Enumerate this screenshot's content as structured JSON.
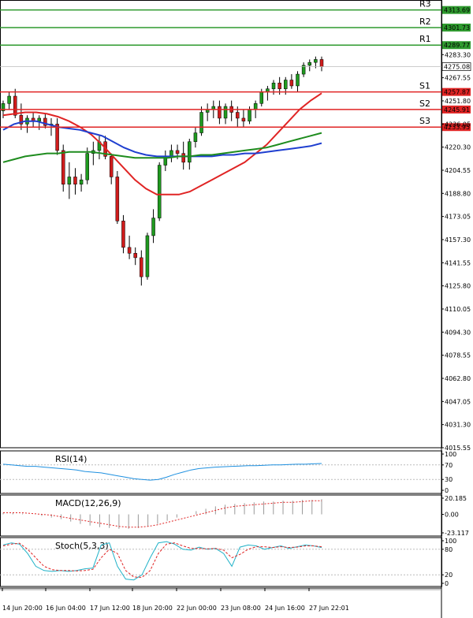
{
  "chart_data": {
    "type": "candlestick",
    "price_axis": {
      "range": [
        4015.55,
        4320.5
      ],
      "ticks": [
        "4283.30",
        "4267.55",
        "4251.80",
        "4236.05",
        "4220.30",
        "4204.55",
        "4188.80",
        "4173.05",
        "4157.30",
        "4141.55",
        "4125.80",
        "4110.05",
        "4094.30",
        "4078.55",
        "4062.80",
        "4047.05",
        "4031.30",
        "4015.55"
      ],
      "current_price": "4275.08"
    },
    "levels": [
      {
        "label": "R3",
        "value": "4313.69",
        "color": "#2e9a2e"
      },
      {
        "label": "R2",
        "value": "4301.73",
        "color": "#2e9a2e"
      },
      {
        "label": "R1",
        "value": "4289.77",
        "color": "#2e9a2e"
      },
      {
        "label": "S1",
        "value": "4257.87",
        "color": "#e02424"
      },
      {
        "label": "S2",
        "value": "4245.91",
        "color": "#e02424"
      },
      {
        "label": "S3",
        "value": "4233.95",
        "color": "#e02424"
      }
    ],
    "x_labels": [
      "14 Jun 20:00",
      "16 Jun 04:00",
      "17 Jun 12:00",
      "18 Jun 20:00",
      "22 Jun 00:00",
      "23 Jun 08:00",
      "24 Jun 16:00",
      "27 Jun 22:01"
    ],
    "candles": [
      [
        4245,
        4252,
        4240,
        4250
      ],
      [
        4250,
        4258,
        4246,
        4255
      ],
      [
        4255,
        4260,
        4240,
        4242
      ],
      [
        4242,
        4250,
        4232,
        4236
      ],
      [
        4236,
        4242,
        4230,
        4240
      ],
      [
        4240,
        4244,
        4234,
        4238
      ],
      [
        4238,
        4242,
        4232,
        4240
      ],
      [
        4240,
        4243,
        4233,
        4235
      ],
      [
        4235,
        4240,
        4228,
        4236
      ],
      [
        4236,
        4240,
        4215,
        4218
      ],
      [
        4218,
        4222,
        4190,
        4195
      ],
      [
        4195,
        4210,
        4185,
        4200
      ],
      [
        4200,
        4206,
        4188,
        4195
      ],
      [
        4195,
        4202,
        4190,
        4198
      ],
      [
        4198,
        4220,
        4195,
        4216
      ],
      [
        4216,
        4224,
        4208,
        4218
      ],
      [
        4218,
        4228,
        4212,
        4224
      ],
      [
        4224,
        4228,
        4212,
        4214
      ],
      [
        4214,
        4216,
        4195,
        4200
      ],
      [
        4200,
        4204,
        4168,
        4170
      ],
      [
        4170,
        4174,
        4148,
        4152
      ],
      [
        4152,
        4160,
        4144,
        4148
      ],
      [
        4148,
        4152,
        4140,
        4145
      ],
      [
        4145,
        4150,
        4126,
        4132
      ],
      [
        4132,
        4162,
        4130,
        4160
      ],
      [
        4160,
        4178,
        4155,
        4172
      ],
      [
        4172,
        4210,
        4170,
        4208
      ],
      [
        4208,
        4218,
        4204,
        4214
      ],
      [
        4214,
        4222,
        4210,
        4218
      ],
      [
        4218,
        4222,
        4212,
        4216
      ],
      [
        4216,
        4224,
        4205,
        4210
      ],
      [
        4210,
        4226,
        4205,
        4224
      ],
      [
        4224,
        4234,
        4220,
        4230
      ],
      [
        4230,
        4248,
        4228,
        4244
      ],
      [
        4244,
        4250,
        4238,
        4246
      ],
      [
        4246,
        4252,
        4240,
        4248
      ],
      [
        4248,
        4252,
        4236,
        4240
      ],
      [
        4240,
        4250,
        4236,
        4248
      ],
      [
        4248,
        4252,
        4238,
        4244
      ],
      [
        4244,
        4248,
        4234,
        4240
      ],
      [
        4240,
        4246,
        4234,
        4238
      ],
      [
        4238,
        4248,
        4236,
        4246
      ],
      [
        4246,
        4252,
        4240,
        4250
      ],
      [
        4250,
        4260,
        4248,
        4258
      ],
      [
        4258,
        4262,
        4252,
        4260
      ],
      [
        4260,
        4266,
        4256,
        4264
      ],
      [
        4264,
        4268,
        4256,
        4260
      ],
      [
        4260,
        4268,
        4256,
        4266
      ],
      [
        4266,
        4270,
        4260,
        4262
      ],
      [
        4262,
        4272,
        4258,
        4270
      ],
      [
        4270,
        4278,
        4268,
        4276
      ],
      [
        4276,
        4280,
        4272,
        4278
      ],
      [
        4278,
        4282,
        4274,
        4280
      ],
      [
        4280,
        4282,
        4272,
        4275
      ]
    ],
    "moving_averages": [
      {
        "color": "#e02424",
        "values": [
          4242,
          4243,
          4244,
          4244,
          4243,
          4241,
          4238,
          4234,
          4229,
          4222,
          4214,
          4206,
          4198,
          4192,
          4188,
          4188,
          4188,
          4190,
          4194,
          4198,
          4202,
          4206,
          4210,
          4216,
          4222,
          4230,
          4238,
          4246,
          4252,
          4257
        ]
      },
      {
        "color": "#1f3fd0",
        "values": [
          4232,
          4236,
          4238,
          4238,
          4236,
          4234,
          4233,
          4232,
          4230,
          4228,
          4224,
          4220,
          4217,
          4215,
          4214,
          4214,
          4214,
          4214,
          4214,
          4214,
          4215,
          4215,
          4216,
          4216,
          4217,
          4218,
          4219,
          4220,
          4221,
          4223
        ]
      },
      {
        "color": "#1e8c1e",
        "values": [
          4210,
          4212,
          4214,
          4215,
          4216,
          4216,
          4217,
          4217,
          4217,
          4216,
          4215,
          4214,
          4213,
          4213,
          4213,
          4213,
          4214,
          4214,
          4215,
          4215,
          4216,
          4217,
          4218,
          4219,
          4220,
          4222,
          4224,
          4226,
          4228,
          4230
        ]
      }
    ],
    "indicators": [
      {
        "label": "RSI(14)",
        "ticks": [
          "100",
          "70",
          "30",
          "0"
        ],
        "range": [
          0,
          100
        ],
        "values": [
          72,
          70,
          68,
          66,
          66,
          64,
          62,
          60,
          58,
          56,
          52,
          50,
          48,
          44,
          40,
          36,
          32,
          30,
          28,
          30,
          36,
          44,
          50,
          56,
          60,
          62,
          64,
          65,
          66,
          67,
          68,
          68,
          69,
          70,
          70,
          71,
          72,
          72,
          73,
          74
        ]
      },
      {
        "label": "MACD(12,26,9)",
        "ticks": [
          "20.185",
          "0.00",
          "-23.117"
        ],
        "range": [
          -23.117,
          20.185
        ],
        "histogram": [
          2,
          2,
          1,
          0,
          -2,
          -4,
          -6,
          -9,
          -12,
          -14,
          -16,
          -17,
          -18,
          -18,
          -17,
          -15,
          -12,
          -8,
          -4,
          0,
          4,
          7,
          10,
          12,
          13,
          14,
          15,
          16,
          16,
          17,
          17,
          18,
          18,
          19
        ],
        "signal": [
          2,
          2,
          2,
          1,
          0,
          -1,
          -3,
          -5,
          -7,
          -9,
          -11,
          -13,
          -15,
          -16,
          -16,
          -15,
          -13,
          -10,
          -7,
          -4,
          -1,
          2,
          5,
          8,
          10,
          11,
          12,
          13,
          14,
          15,
          15,
          16,
          17,
          17
        ]
      },
      {
        "label": "Stoch(5,3,3)",
        "ticks": [
          "100",
          "80",
          "20",
          "0"
        ],
        "range": [
          0,
          100
        ],
        "k": [
          90,
          95,
          92,
          70,
          40,
          30,
          28,
          30,
          28,
          30,
          34,
          36,
          90,
          95,
          40,
          10,
          8,
          20,
          60,
          95,
          98,
          92,
          80,
          78,
          85,
          80,
          82,
          70,
          40,
          85,
          90,
          88,
          80,
          84,
          88,
          82,
          86,
          90,
          88,
          84
        ],
        "d": [
          88,
          92,
          94,
          80,
          60,
          40,
          32,
          30,
          30,
          29,
          30,
          33,
          60,
          80,
          70,
          30,
          15,
          14,
          30,
          70,
          92,
          95,
          88,
          82,
          82,
          81,
          82,
          78,
          60,
          68,
          80,
          86,
          86,
          84,
          86,
          84,
          85,
          88,
          88,
          86
        ]
      }
    ]
  }
}
